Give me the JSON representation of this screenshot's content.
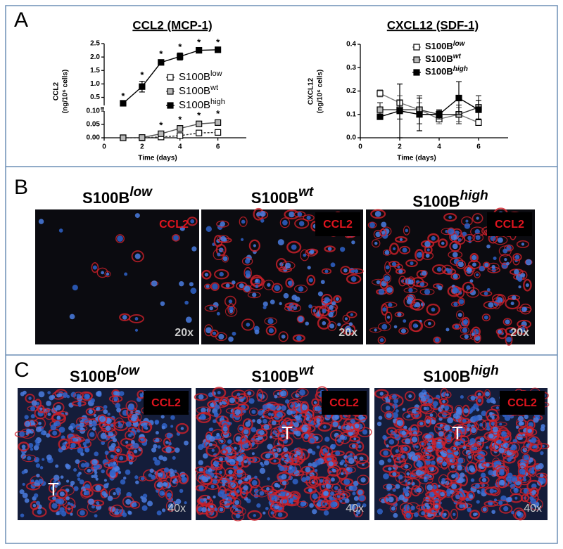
{
  "panel_labels": [
    "A",
    "B",
    "C"
  ],
  "chart_data": [
    {
      "type": "line",
      "title": "CCL2 (MCP-1)",
      "ylabel": [
        "CCL2",
        "(ng/10⁶ cells)"
      ],
      "xlabel": "Time (days)",
      "xlim": [
        0,
        7.5
      ],
      "xticks": [
        0,
        2,
        4,
        6
      ],
      "broken_y": true,
      "ylim": [
        0,
        0.1
      ],
      "yticks": [
        {
          "value": 0,
          "label": "0.00"
        },
        {
          "value": 0.05,
          "label": "0.05"
        },
        {
          "value": 0.1,
          "label": "0.10"
        }
      ],
      "ylim_upper": [
        0.2,
        2.5
      ],
      "yticks_upper": [
        0.5,
        {
          "value": 1,
          "label": "1.0"
        },
        1.5,
        {
          "value": 2,
          "label": "2.0"
        },
        2.5
      ],
      "legend_bold": false,
      "x": [
        1,
        2,
        3,
        4,
        5,
        6
      ],
      "series": [
        {
          "name": "S100B",
          "name_sup": "low",
          "color": "#ffffff",
          "line_color": "#333333",
          "line_style": "dashed",
          "values": [
            0,
            0,
            0.003,
            0.008,
            0.018,
            0.02
          ],
          "errors": [
            0.002,
            0.002,
            0.003,
            0.004,
            0.004,
            0.004
          ],
          "significance": [
            null,
            null,
            null,
            null,
            null,
            null
          ]
        },
        {
          "name": "S100B",
          "name_sup": "wt",
          "color": "#b8b8b8",
          "line_color": "#555555",
          "line_style": "solid",
          "values": [
            0,
            0.001,
            0.015,
            0.035,
            0.052,
            0.057
          ],
          "errors": [
            0.002,
            0.002,
            0.008,
            0.01,
            0.008,
            0.01
          ],
          "significance": [
            null,
            null,
            "*",
            "*",
            "*",
            "*"
          ]
        },
        {
          "name": "S100B",
          "name_sup": "high",
          "color": "#000000",
          "line_color": "#000000",
          "line_style": "solid",
          "values": [
            0.28,
            0.9,
            1.8,
            2.02,
            2.25,
            2.27
          ],
          "errors": [
            0.04,
            0.2,
            0.09,
            0.13,
            0.07,
            0.05
          ],
          "significance": [
            "*",
            "*",
            "*",
            "*",
            "*",
            "*"
          ]
        }
      ]
    },
    {
      "type": "line",
      "title": "CXCL12 (SDF-1)",
      "ylabel": [
        "CXCL12",
        "(ng/10⁶ cells)"
      ],
      "xlabel": "Time (days)",
      "xlim": [
        0,
        7.5
      ],
      "xticks": [
        0,
        2,
        4,
        6
      ],
      "ylim": [
        0,
        0.4
      ],
      "yticks": [
        {
          "value": 0,
          "label": "0.0"
        },
        0.1,
        0.2,
        0.3,
        0.4
      ],
      "legend_bold": true,
      "x": [
        1,
        2,
        3,
        4,
        5,
        6
      ],
      "series": [
        {
          "name": "S100B",
          "name_sup": "low",
          "color": "#ffffff",
          "line_color": "#777777",
          "line_style": "solid",
          "values": [
            0.19,
            0.15,
            0.12,
            0.08,
            0.1,
            0.065
          ],
          "errors": [
            0.015,
            0.03,
            0.03,
            0.02,
            0.03,
            0.01
          ]
        },
        {
          "name": "S100B",
          "name_sup": "wt",
          "color": "#b8b8b8",
          "line_color": "#333333",
          "line_style": "solid",
          "values": [
            0.12,
            0.12,
            0.12,
            0.1,
            0.1,
            0.13
          ],
          "errors": [
            0.03,
            0.04,
            0.06,
            0.02,
            0.04,
            0.05
          ]
        },
        {
          "name": "S100B",
          "name_sup": "high",
          "color": "#000000",
          "line_color": "#000000",
          "line_style": "solid",
          "values": [
            0.09,
            0.115,
            0.1,
            0.1,
            0.17,
            0.12
          ],
          "errors": [
            0.01,
            0.115,
            0.07,
            0.015,
            0.07,
            0.04
          ]
        }
      ]
    }
  ],
  "panel_b": {
    "images": [
      {
        "title": "S100B",
        "title_sup": "low",
        "stain": "CCL2",
        "magnification": "20x"
      },
      {
        "title": "S100B",
        "title_sup": "wt",
        "stain": "CCL2",
        "magnification": "20x"
      },
      {
        "title": "S100B",
        "title_sup": "high",
        "stain": "CCL2",
        "magnification": "20x"
      }
    ]
  },
  "panel_c": {
    "images": [
      {
        "title": "S100B",
        "title_sup": "low",
        "stain": "CCL2",
        "marker": "T",
        "magnification": "40x"
      },
      {
        "title": "S100B",
        "title_sup": "wt",
        "stain": "CCL2",
        "marker": "T",
        "magnification": "40x"
      },
      {
        "title": "S100B",
        "title_sup": "high",
        "stain": "CCL2",
        "marker": "T",
        "magnification": "40x"
      }
    ]
  }
}
